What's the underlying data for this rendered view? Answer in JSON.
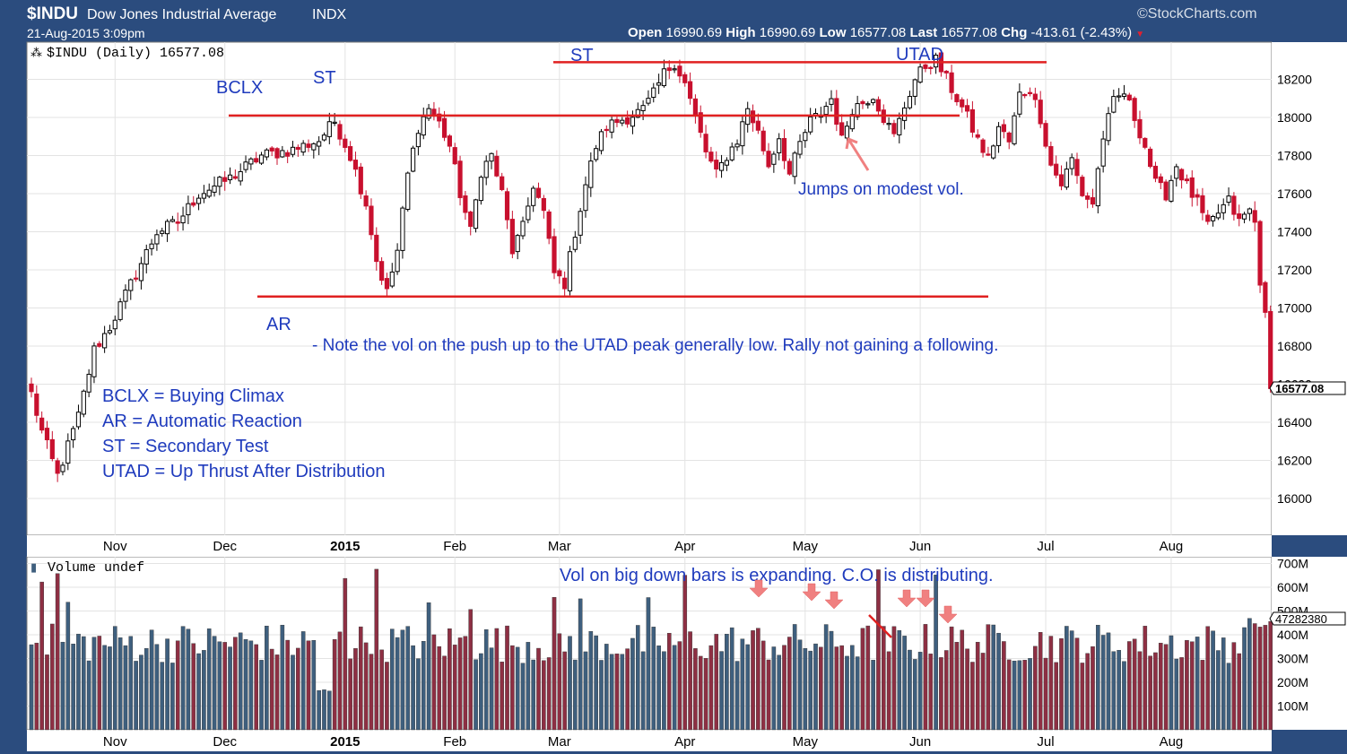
{
  "header": {
    "symbol": "$INDU",
    "name": "Dow Jones Industrial Average",
    "exchange": "INDX",
    "datetime": "21-Aug-2015 3:09pm",
    "provider": "©StockCharts.com",
    "open_label": "Open",
    "open": "16990.69",
    "high_label": "High",
    "high": "16990.69",
    "low_label": "Low",
    "low": "16577.08",
    "last_label": "Last",
    "last": "16577.08",
    "chg_label": "Chg",
    "chg": "-413.61 (-2.43%)",
    "down_arrow": "▼"
  },
  "price_panel": {
    "legend": "$INDU (Daily) 16577.08",
    "last_value": "16577.08"
  },
  "volume_panel": {
    "legend": "Volume undef",
    "last_value": "47282380"
  },
  "annotations": {
    "bclx": "BCLX",
    "st1": "ST",
    "st2": "ST",
    "utad": "UTAD",
    "ar": "AR",
    "jumps": "Jumps on modest vol.",
    "note": "- Note the vol on the push up to the UTAD peak generally low. Rally not gaining a following.",
    "key_bclx": "BCLX = Buying Climax",
    "key_ar": "AR = Automatic Reaction",
    "key_st": "ST = Secondary Test",
    "key_utad": "UTAD = Up Thrust After Distribution",
    "vol_note": "Vol on big down bars is expanding. C.O. is distributing."
  },
  "colors": {
    "up_candle": "#000000",
    "down_candle": "#c8102e",
    "vol_up": "#3e5f7e",
    "vol_down": "#8e2f43",
    "annotation_text": "#1f3bbd",
    "level_line": "#e02020",
    "arrow": "#f08080",
    "frame": "#2b4c7e"
  },
  "chart_data": [
    {
      "type": "candlestick",
      "title": "$INDU (Daily) 16577.08",
      "x_range": [
        "Oct 2014",
        "21-Aug-2015"
      ],
      "ylim": [
        15800,
        18400
      ],
      "y_ticks": [
        "16000",
        "16200",
        "16400",
        "16600",
        "16800",
        "17000",
        "17200",
        "17400",
        "17600",
        "17800",
        "18000",
        "18200"
      ],
      "x_ticks": [
        "Nov",
        "Dec",
        "2015",
        "Feb",
        "Mar",
        "Apr",
        "May",
        "Jun",
        "Jul",
        "Aug"
      ],
      "grid": true,
      "path_points": [
        [
          0,
          16550
        ],
        [
          2,
          16350
        ],
        [
          5,
          16120
        ],
        [
          9,
          16430
        ],
        [
          12,
          16780
        ],
        [
          15,
          16900
        ],
        [
          20,
          17180
        ],
        [
          24,
          17400
        ],
        [
          28,
          17450
        ],
        [
          32,
          17600
        ],
        [
          38,
          17680
        ],
        [
          44,
          17800
        ],
        [
          50,
          17830
        ],
        [
          55,
          17880
        ],
        [
          58,
          17980
        ],
        [
          61,
          17800
        ],
        [
          64,
          17550
        ],
        [
          66,
          17250
        ],
        [
          68,
          17080
        ],
        [
          70,
          17300
        ],
        [
          72,
          17700
        ],
        [
          74,
          17950
        ],
        [
          76,
          18050
        ],
        [
          78,
          17970
        ],
        [
          80,
          17850
        ],
        [
          82,
          17600
        ],
        [
          84,
          17400
        ],
        [
          86,
          17720
        ],
        [
          88,
          17800
        ],
        [
          90,
          17600
        ],
        [
          92,
          17300
        ],
        [
          94,
          17420
        ],
        [
          96,
          17650
        ],
        [
          98,
          17500
        ],
        [
          100,
          17180
        ],
        [
          102,
          17130
        ],
        [
          104,
          17400
        ],
        [
          106,
          17650
        ],
        [
          108,
          17850
        ],
        [
          110,
          17950
        ],
        [
          112,
          17980
        ],
        [
          114,
          18000
        ],
        [
          117,
          18040
        ],
        [
          119,
          18120
        ],
        [
          121,
          18230
        ],
        [
          123,
          18290
        ],
        [
          125,
          18180
        ],
        [
          127,
          18000
        ],
        [
          129,
          17820
        ],
        [
          131,
          17700
        ],
        [
          133,
          17800
        ],
        [
          135,
          17880
        ],
        [
          137,
          18050
        ],
        [
          139,
          17920
        ],
        [
          141,
          17750
        ],
        [
          143,
          17900
        ],
        [
          145,
          17700
        ],
        [
          147,
          17860
        ],
        [
          149,
          17980
        ],
        [
          151,
          18020
        ],
        [
          153,
          18100
        ],
        [
          155,
          17880
        ],
        [
          157,
          18050
        ],
        [
          159,
          18080
        ],
        [
          161,
          18120
        ],
        [
          163,
          18000
        ],
        [
          165,
          17900
        ],
        [
          167,
          18060
        ],
        [
          169,
          18200
        ],
        [
          171,
          18270
        ],
        [
          173,
          18300
        ],
        [
          175,
          18200
        ],
        [
          177,
          18100
        ],
        [
          179,
          18000
        ],
        [
          181,
          17880
        ],
        [
          183,
          17780
        ],
        [
          185,
          17950
        ],
        [
          187,
          17870
        ],
        [
          189,
          18120
        ],
        [
          191,
          18150
        ],
        [
          193,
          18000
        ],
        [
          195,
          17750
        ],
        [
          197,
          17650
        ],
        [
          199,
          17780
        ],
        [
          201,
          17600
        ],
        [
          203,
          17550
        ],
        [
          205,
          17900
        ],
        [
          207,
          18080
        ],
        [
          209,
          18130
        ],
        [
          211,
          18000
        ],
        [
          213,
          17850
        ],
        [
          215,
          17650
        ],
        [
          217,
          17600
        ],
        [
          219,
          17750
        ],
        [
          221,
          17640
        ],
        [
          223,
          17550
        ],
        [
          225,
          17420
        ],
        [
          227,
          17500
        ],
        [
          229,
          17560
        ],
        [
          231,
          17450
        ],
        [
          233,
          17520
        ],
        [
          234,
          17450
        ],
        [
          235,
          17120
        ],
        [
          236,
          16977
        ],
        [
          237,
          16577
        ]
      ],
      "levels": [
        {
          "name": "support",
          "y": 17060
        },
        {
          "name": "resistance",
          "y": 18010
        },
        {
          "name": "utad-line",
          "y": 18290
        }
      ]
    },
    {
      "type": "bar",
      "title": "Volume undef",
      "ylim": [
        0,
        700000000
      ],
      "y_ticks": [
        "100M",
        "200M",
        "300M",
        "400M",
        "500M",
        "600M",
        "700M"
      ],
      "x_ticks": [
        "Nov",
        "Dec",
        "2015",
        "Feb",
        "Mar",
        "Apr",
        "May",
        "Jun",
        "Jul",
        "Aug"
      ],
      "last_value": 47282380
    }
  ]
}
